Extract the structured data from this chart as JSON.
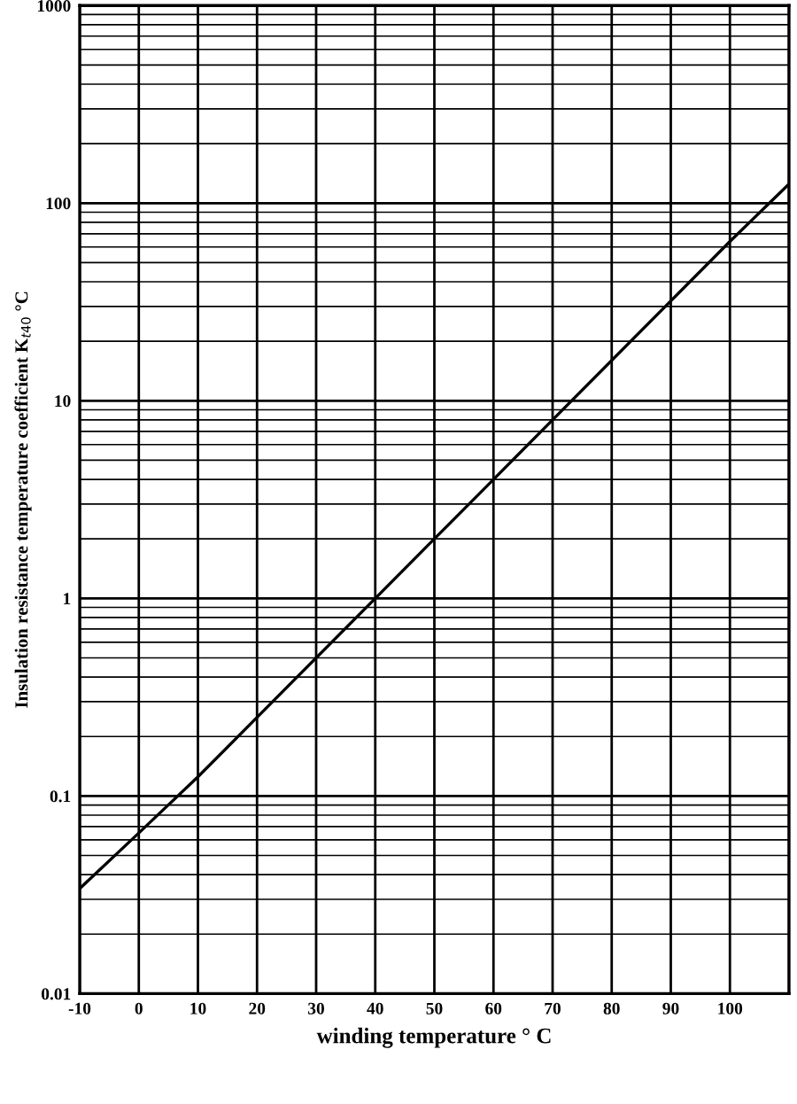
{
  "chart_data": {
    "type": "line",
    "xlabel": "winding temperature ° C",
    "ylabel": "Insulation resistance temperature coefficient K$_{t40}$ °C",
    "x": [
      -10,
      0,
      10,
      20,
      30,
      40,
      50,
      60,
      70,
      80,
      90,
      100,
      110
    ],
    "series": [
      {
        "color": "#000000",
        "values": [
          0.034,
          0.065,
          0.125,
          0.25,
          0.5,
          1,
          2,
          4,
          8,
          16,
          32,
          64,
          125
        ]
      }
    ],
    "log": "y",
    "xlim": [
      -10,
      110
    ],
    "ylim": [
      0.01,
      1000
    ],
    "xticks": [
      -10,
      0,
      10,
      20,
      30,
      40,
      50,
      60,
      70,
      80,
      90,
      100,
      {
        "value": 110,
        "label": null
      }
    ],
    "yticks": [
      {
        "value": 0.01,
        "label": "0.01"
      },
      {
        "value": 0.1,
        "label": "0.1"
      },
      1,
      10,
      100,
      1000
    ],
    "grid": true,
    "marker": "none",
    "line_style": "solid",
    "legend": false
  }
}
